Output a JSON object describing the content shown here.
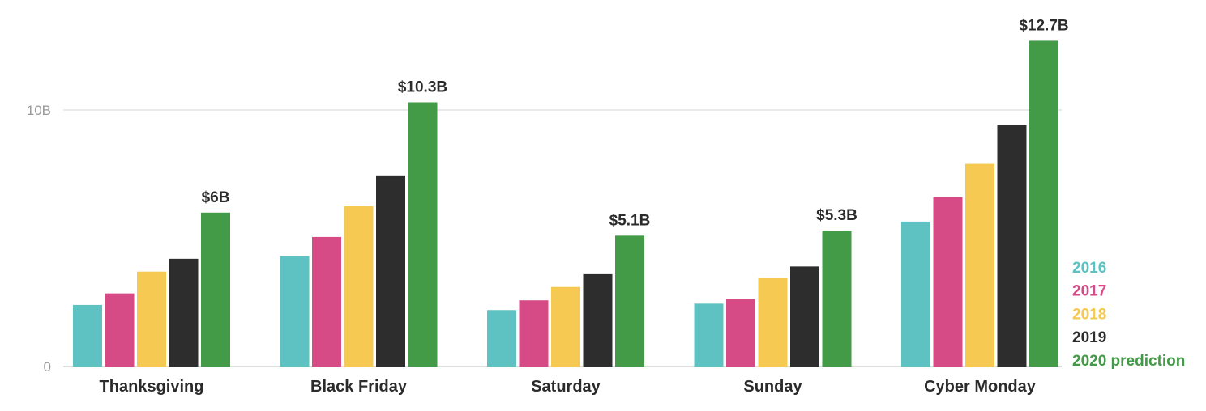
{
  "chart_data": {
    "type": "bar",
    "categories": [
      "Thanksgiving",
      "Black Friday",
      "Saturday",
      "Sunday",
      "Cyber Monday"
    ],
    "series": [
      {
        "name": "2016",
        "color": "#5ec2c2",
        "values": [
          2.4,
          4.3,
          2.2,
          2.45,
          5.65
        ]
      },
      {
        "name": "2017",
        "color": "#d64a86",
        "values": [
          2.85,
          5.05,
          2.58,
          2.63,
          6.6
        ]
      },
      {
        "name": "2018",
        "color": "#f5c952",
        "values": [
          3.7,
          6.25,
          3.1,
          3.45,
          7.9
        ]
      },
      {
        "name": "2019",
        "color": "#2d2d2d",
        "values": [
          4.2,
          7.45,
          3.6,
          3.9,
          9.4
        ]
      },
      {
        "name": "2020 prediction",
        "color": "#439a47",
        "values": [
          6,
          10.3,
          5.1,
          5.3,
          12.7
        ]
      }
    ],
    "data_labels": [
      "$6B",
      "$10.3B",
      "$5.1B",
      "$5.3B",
      "$12.7B"
    ],
    "y_ticks": [
      {
        "value": 0,
        "label": "0"
      },
      {
        "value": 10,
        "label": "10B"
      }
    ],
    "ylim": [
      0,
      13.2
    ],
    "grid": true,
    "legend_position": "bottom-right",
    "title": "",
    "xlabel": "",
    "ylabel": ""
  }
}
